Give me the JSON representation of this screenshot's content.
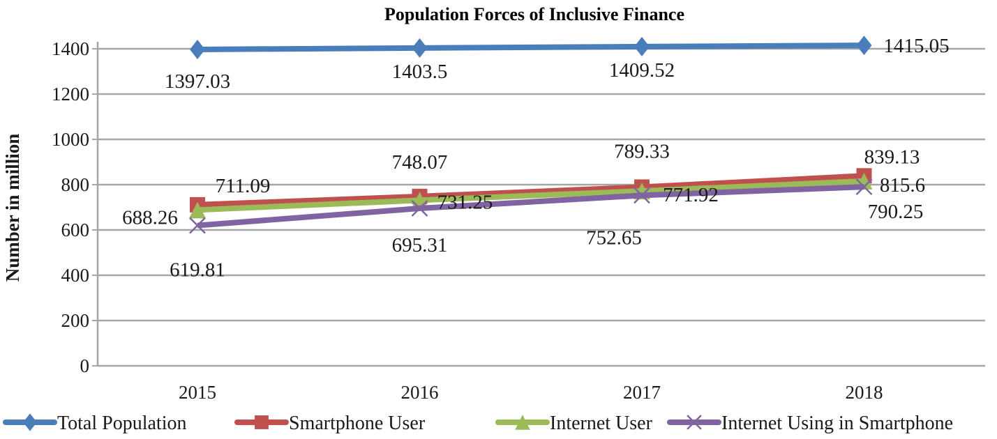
{
  "chart_data": {
    "type": "line",
    "title": "Population Forces of Inclusive Finance",
    "xlabel": "",
    "ylabel": "Number in million",
    "categories": [
      "2015",
      "2016",
      "2017",
      "2018"
    ],
    "ylim": [
      0,
      1400
    ],
    "yticks": [
      0,
      200,
      400,
      600,
      800,
      1000,
      1200,
      1400
    ],
    "grid": true,
    "legend_position": "bottom",
    "series": [
      {
        "name": "Total Population",
        "color": "#4A7EBB",
        "marker": "diamond",
        "values": [
          1397.03,
          1403.5,
          1409.52,
          1415.05
        ],
        "labels": [
          "1397.03",
          "1403.5",
          "1409.52",
          "1415.05"
        ]
      },
      {
        "name": "Smartphone User",
        "color": "#C0504D",
        "marker": "square",
        "values": [
          711.09,
          748.07,
          789.33,
          839.13
        ],
        "labels": [
          "711.09",
          "748.07",
          "789.33",
          "839.13"
        ]
      },
      {
        "name": "Internet User",
        "color": "#9BBB59",
        "marker": "triangle",
        "values": [
          688.26,
          731.25,
          771.92,
          815.6
        ],
        "labels": [
          "688.26",
          "731.25",
          "771.92",
          "815.6"
        ]
      },
      {
        "name": "Internet Using in Smartphone",
        "color": "#8064A2",
        "marker": "x",
        "values": [
          619.81,
          695.31,
          752.65,
          790.25
        ],
        "labels": [
          "619.81",
          "695.31",
          "752.65",
          "790.25"
        ]
      }
    ]
  }
}
